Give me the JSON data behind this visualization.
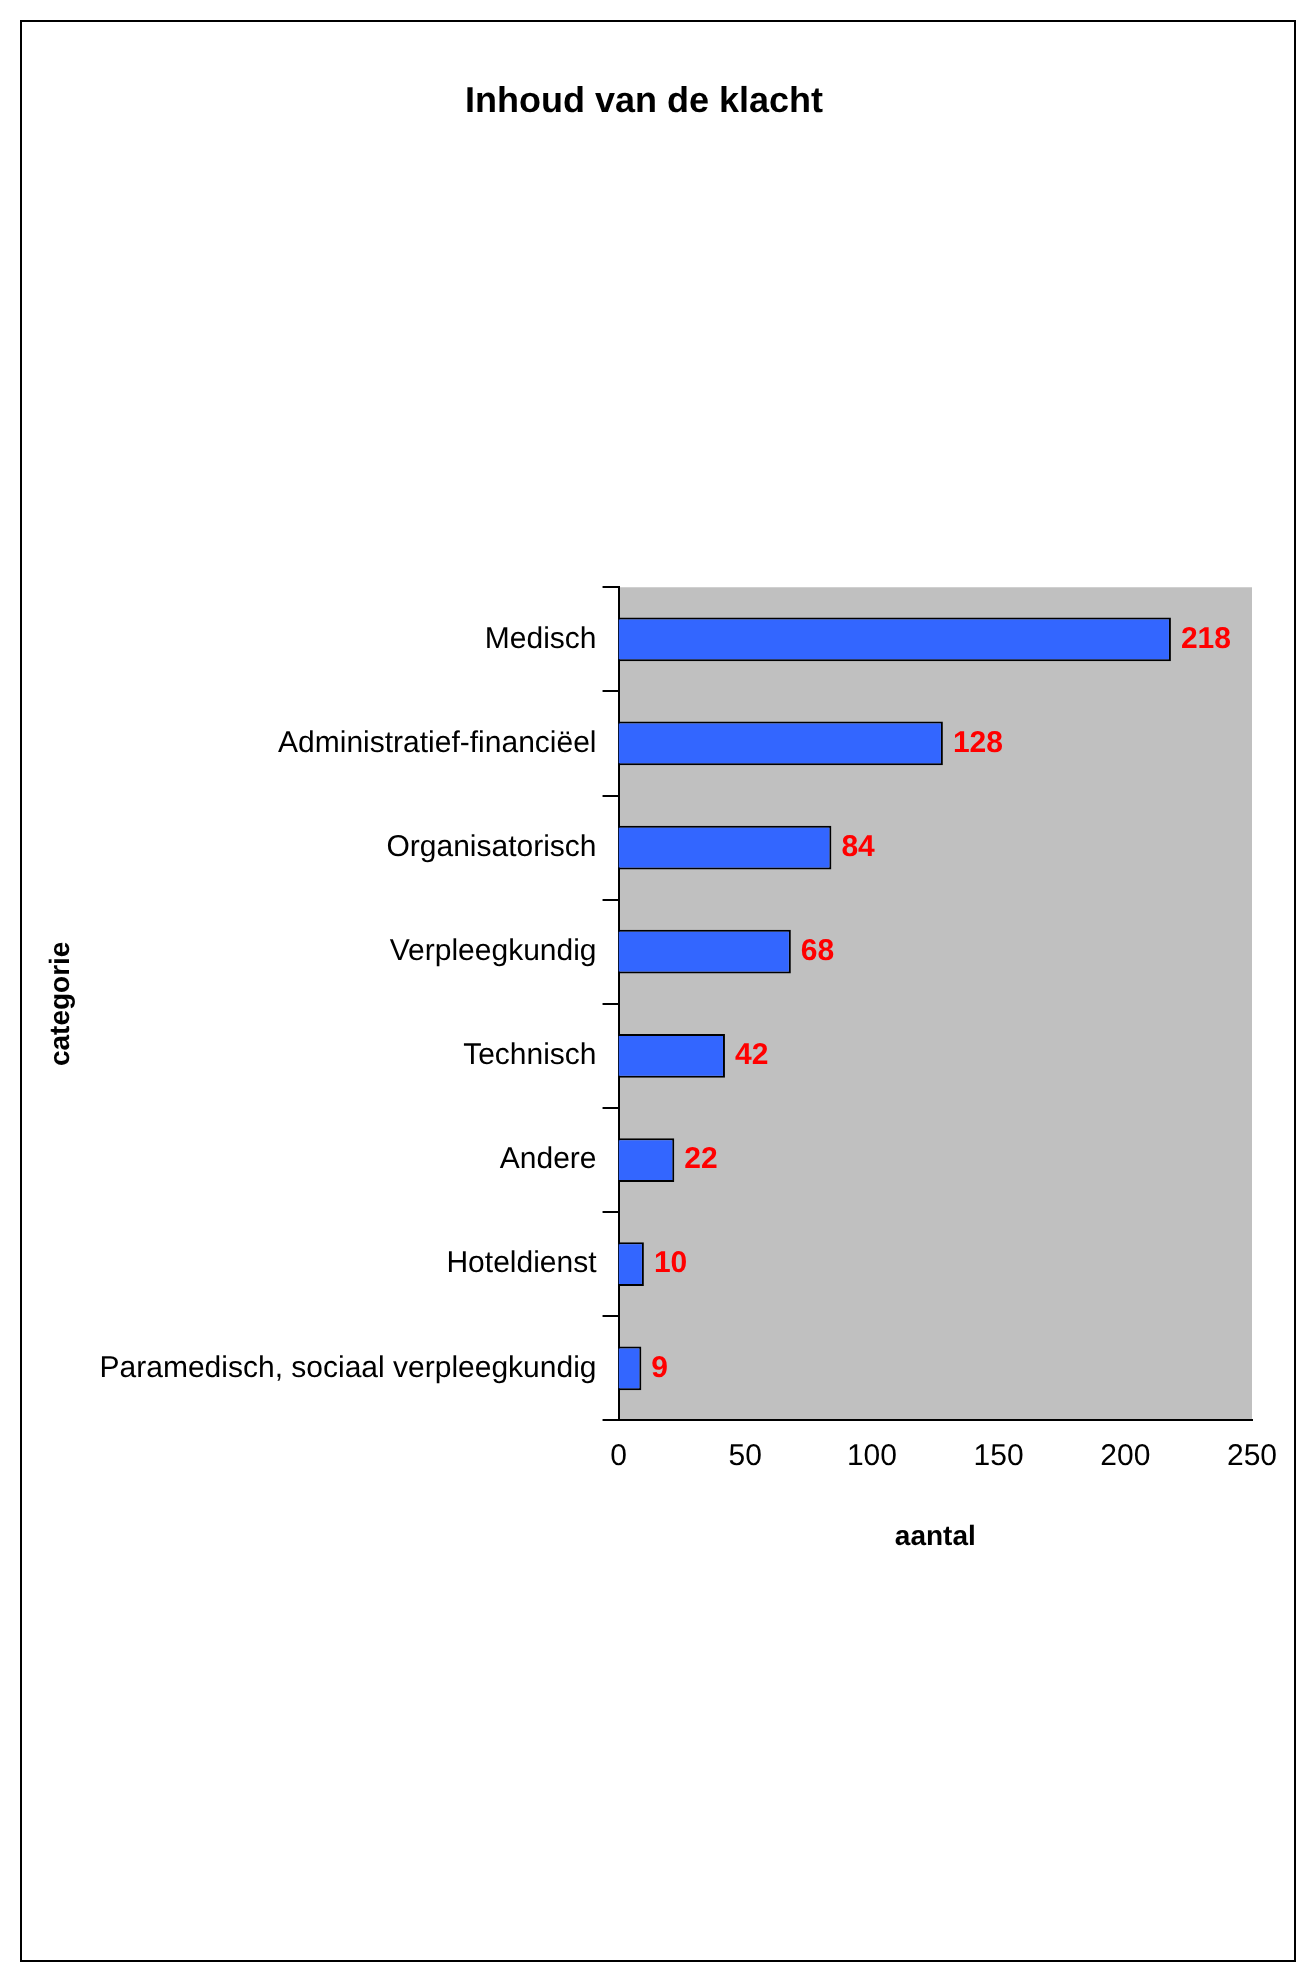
{
  "chart_data": {
    "type": "bar",
    "orientation": "horizontal",
    "title": "Inhoud van de klacht",
    "xlabel": "aantal",
    "ylabel": "categorie",
    "categories": [
      "Medisch",
      "Administratief-financiëel",
      "Organisatorisch",
      "Verpleegkundig",
      "Technisch",
      "Andere",
      "Hoteldienst",
      "Paramedisch, sociaal verpleegkundig"
    ],
    "values": [
      218,
      128,
      84,
      68,
      42,
      22,
      10,
      9
    ],
    "color": "#3366ff",
    "xlim": [
      0,
      250
    ],
    "xticks": [
      0,
      50,
      100,
      150,
      200,
      250
    ],
    "data_labels": true,
    "grid": false,
    "legend": false
  }
}
